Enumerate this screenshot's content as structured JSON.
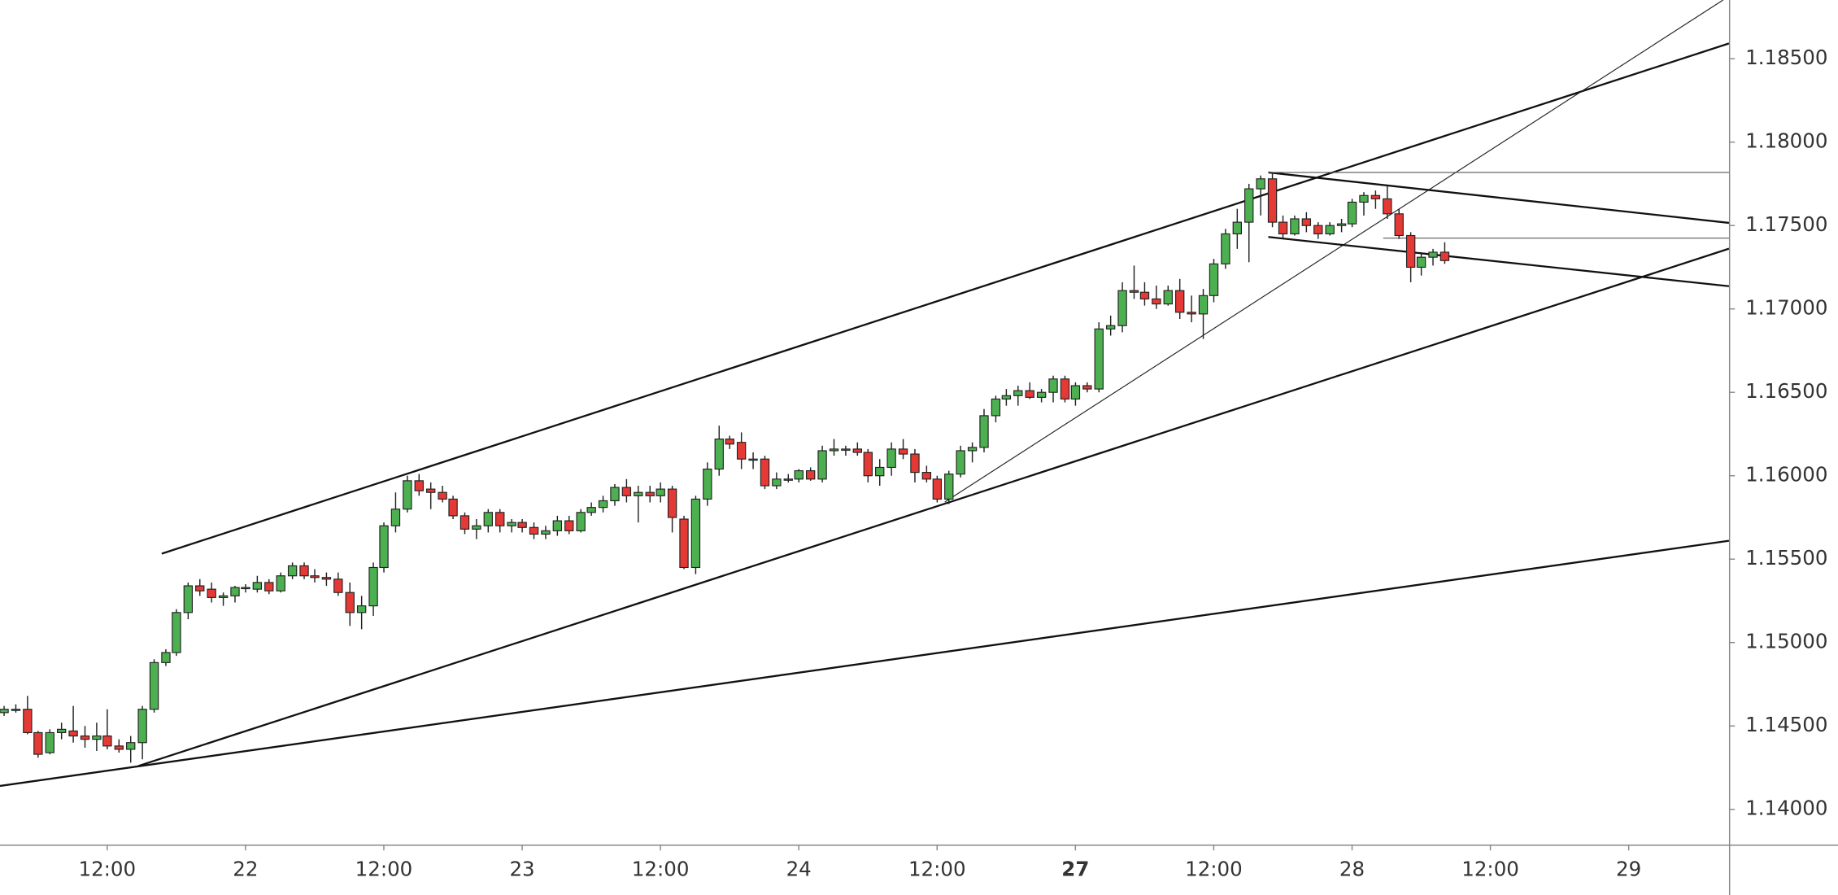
{
  "chart_data": {
    "type": "candlestick",
    "x": [
      0,
      1,
      2,
      3,
      4,
      5,
      6,
      7,
      8,
      9,
      10,
      11,
      12,
      13,
      14,
      15,
      16,
      17,
      18,
      19,
      20,
      21,
      22,
      23,
      24,
      25,
      26,
      27,
      28,
      29,
      30,
      31,
      32,
      33,
      34,
      35,
      36,
      37,
      38,
      39,
      40,
      41,
      42,
      43,
      44,
      45,
      46,
      47,
      48,
      49,
      50,
      51,
      52,
      53,
      54,
      55,
      56,
      57,
      58,
      59,
      60,
      61,
      62,
      63,
      64,
      65,
      66,
      67,
      68,
      69,
      70,
      71,
      72,
      73,
      74,
      75,
      76,
      77,
      78,
      79,
      80,
      81,
      82,
      83,
      84,
      85,
      86,
      87,
      88,
      89,
      90,
      91,
      92,
      93,
      94,
      95,
      96,
      97,
      98,
      99,
      100,
      101,
      102,
      103,
      104,
      105,
      106,
      107,
      108,
      109,
      110,
      111,
      112,
      113,
      114,
      115,
      116,
      117,
      118,
      119,
      120,
      121,
      122,
      123,
      124,
      125
    ],
    "open": [
      1.1458,
      1.146,
      1.146,
      1.1446,
      1.1434,
      1.1446,
      1.1447,
      1.1444,
      1.1442,
      1.1444,
      1.1438,
      1.1436,
      1.144,
      1.146,
      1.1488,
      1.1494,
      1.1518,
      1.1534,
      1.1532,
      1.1527,
      1.1528,
      1.1533,
      1.1532,
      1.1536,
      1.1531,
      1.154,
      1.1546,
      1.154,
      1.1539,
      1.1538,
      1.153,
      1.1518,
      1.1522,
      1.1545,
      1.157,
      1.158,
      1.1597,
      1.1592,
      1.159,
      1.1586,
      1.1576,
      1.1568,
      1.157,
      1.1578,
      1.157,
      1.1572,
      1.1569,
      1.1565,
      1.1567,
      1.1573,
      1.1567,
      1.1578,
      1.1581,
      1.1585,
      1.1593,
      1.1588,
      1.159,
      1.1588,
      1.1592,
      1.1574,
      1.1545,
      1.1586,
      1.1604,
      1.1622,
      1.162,
      1.161,
      1.161,
      1.1594,
      1.1598,
      1.1598,
      1.1603,
      1.1598,
      1.1615,
      1.1616,
      1.1616,
      1.1614,
      1.16,
      1.1605,
      1.1616,
      1.1613,
      1.1602,
      1.1598,
      1.1586,
      1.1601,
      1.1615,
      1.1617,
      1.1636,
      1.1646,
      1.1648,
      1.1651,
      1.1647,
      1.165,
      1.1658,
      1.1646,
      1.1654,
      1.1652,
      1.1688,
      1.169,
      1.1711,
      1.171,
      1.1706,
      1.1703,
      1.1711,
      1.1698,
      1.1697,
      1.1708,
      1.1727,
      1.1745,
      1.1752,
      1.1772,
      1.1778,
      1.1752,
      1.1745,
      1.1754,
      1.175,
      1.1745,
      1.175,
      1.1751,
      1.1764,
      1.1768,
      1.1766,
      1.1757,
      1.1744,
      1.1725,
      1.1731,
      1.1734
    ],
    "high": [
      1.1462,
      1.1463,
      1.1468,
      1.1447,
      1.1448,
      1.1452,
      1.1462,
      1.145,
      1.1452,
      1.146,
      1.1442,
      1.1444,
      1.1462,
      1.149,
      1.1496,
      1.152,
      1.1536,
      1.1538,
      1.1536,
      1.153,
      1.1534,
      1.1535,
      1.154,
      1.1538,
      1.1542,
      1.1548,
      1.1548,
      1.1544,
      1.1542,
      1.1542,
      1.1536,
      1.1528,
      1.1548,
      1.1572,
      1.159,
      1.16,
      1.1601,
      1.1596,
      1.1594,
      1.1588,
      1.1578,
      1.1574,
      1.158,
      1.158,
      1.1574,
      1.1574,
      1.1572,
      1.157,
      1.1576,
      1.1576,
      1.158,
      1.1584,
      1.1588,
      1.1595,
      1.1598,
      1.1594,
      1.1594,
      1.1596,
      1.1594,
      1.1576,
      1.1588,
      1.1608,
      1.163,
      1.1624,
      1.1626,
      1.1614,
      1.1612,
      1.1602,
      1.1601,
      1.1604,
      1.1605,
      1.1618,
      1.1622,
      1.1618,
      1.162,
      1.1616,
      1.161,
      1.162,
      1.1622,
      1.1616,
      1.1606,
      1.16,
      1.1603,
      1.1618,
      1.162,
      1.164,
      1.1648,
      1.1652,
      1.1654,
      1.1656,
      1.1652,
      1.166,
      1.166,
      1.1656,
      1.1656,
      1.1692,
      1.1696,
      1.1716,
      1.1726,
      1.1716,
      1.1714,
      1.1714,
      1.1718,
      1.1708,
      1.1712,
      1.173,
      1.1748,
      1.176,
      1.1775,
      1.178,
      1.1781,
      1.1756,
      1.1756,
      1.1758,
      1.1752,
      1.1752,
      1.1754,
      1.1766,
      1.177,
      1.1771,
      1.1774,
      1.176,
      1.1746,
      1.1734,
      1.1736,
      1.174
    ],
    "low": [
      1.1456,
      1.1458,
      1.1445,
      1.1431,
      1.1433,
      1.1442,
      1.144,
      1.1437,
      1.1435,
      1.1436,
      1.1434,
      1.1428,
      1.143,
      1.1458,
      1.1486,
      1.1492,
      1.1514,
      1.1528,
      1.1524,
      1.1522,
      1.1524,
      1.153,
      1.153,
      1.1529,
      1.153,
      1.1538,
      1.1538,
      1.1536,
      1.1534,
      1.1528,
      1.151,
      1.1508,
      1.1516,
      1.1542,
      1.1566,
      1.1578,
      1.1588,
      1.158,
      1.1584,
      1.1574,
      1.1565,
      1.1562,
      1.1566,
      1.1566,
      1.1566,
      1.1566,
      1.1562,
      1.1562,
      1.1564,
      1.1565,
      1.1566,
      1.1576,
      1.1578,
      1.1582,
      1.1584,
      1.1572,
      1.1584,
      1.1584,
      1.1566,
      1.1544,
      1.1541,
      1.1582,
      1.16,
      1.1616,
      1.1604,
      1.1604,
      1.1592,
      1.1592,
      1.1596,
      1.1596,
      1.1597,
      1.1596,
      1.1612,
      1.1612,
      1.1612,
      1.1596,
      1.1594,
      1.16,
      1.161,
      1.1596,
      1.1596,
      1.1584,
      1.1583,
      1.1599,
      1.1608,
      1.1614,
      1.1632,
      1.1642,
      1.1642,
      1.1646,
      1.1644,
      1.1644,
      1.1644,
      1.1642,
      1.165,
      1.165,
      1.1684,
      1.1686,
      1.1706,
      1.1702,
      1.17,
      1.1702,
      1.1694,
      1.1692,
      1.1682,
      1.1704,
      1.1724,
      1.1736,
      1.1728,
      1.1756,
      1.1749,
      1.1742,
      1.1744,
      1.1746,
      1.1742,
      1.1744,
      1.1746,
      1.1749,
      1.1756,
      1.176,
      1.1754,
      1.1742,
      1.1716,
      1.172,
      1.1726,
      1.1727
    ],
    "close": [
      1.146,
      1.146,
      1.1446,
      1.1433,
      1.1446,
      1.1448,
      1.1444,
      1.1442,
      1.1444,
      1.1438,
      1.1436,
      1.144,
      1.146,
      1.1488,
      1.1494,
      1.1518,
      1.1534,
      1.1531,
      1.1527,
      1.1528,
      1.1533,
      1.1533,
      1.1536,
      1.1531,
      1.154,
      1.1546,
      1.154,
      1.1539,
      1.1538,
      1.153,
      1.1518,
      1.1522,
      1.1545,
      1.157,
      1.158,
      1.1597,
      1.1591,
      1.159,
      1.1586,
      1.1576,
      1.1568,
      1.157,
      1.1578,
      1.157,
      1.1572,
      1.1569,
      1.1565,
      1.1567,
      1.1573,
      1.1567,
      1.1578,
      1.1581,
      1.1585,
      1.1593,
      1.1588,
      1.159,
      1.1588,
      1.1592,
      1.1575,
      1.1545,
      1.1586,
      1.1604,
      1.1622,
      1.1619,
      1.161,
      1.161,
      1.1594,
      1.1598,
      1.1598,
      1.1603,
      1.1598,
      1.1615,
      1.1616,
      1.1616,
      1.1614,
      1.16,
      1.1605,
      1.1616,
      1.1613,
      1.1602,
      1.1598,
      1.1586,
      1.1601,
      1.1615,
      1.1617,
      1.1636,
      1.1646,
      1.1648,
      1.1651,
      1.1647,
      1.165,
      1.1658,
      1.1646,
      1.1654,
      1.1652,
      1.1688,
      1.169,
      1.1711,
      1.171,
      1.1706,
      1.1703,
      1.1711,
      1.1698,
      1.1697,
      1.1708,
      1.1727,
      1.1745,
      1.1752,
      1.1772,
      1.1778,
      1.1752,
      1.1745,
      1.1754,
      1.175,
      1.1745,
      1.175,
      1.1751,
      1.1764,
      1.1768,
      1.1766,
      1.1757,
      1.1744,
      1.1725,
      1.1731,
      1.1734,
      1.1729
    ],
    "up_color": "#4caf50",
    "down_color": "#e53935",
    "wick_color": "#222222",
    "xlim": [
      -0.3,
      149.7
    ],
    "xticks": [
      {
        "value": 9,
        "label": "12:00"
      },
      {
        "value": 21,
        "label": "22"
      },
      {
        "value": 33,
        "label": "12:00"
      },
      {
        "value": 45,
        "label": "23"
      },
      {
        "value": 57,
        "label": "12:00"
      },
      {
        "value": 69,
        "label": "24"
      },
      {
        "value": 81,
        "label": "12:00"
      },
      {
        "value": 93,
        "label": "27",
        "bold": true
      },
      {
        "value": 105,
        "label": "12:00"
      },
      {
        "value": 117,
        "label": "28"
      },
      {
        "value": 129,
        "label": "12:00"
      },
      {
        "value": 141,
        "label": "29"
      }
    ],
    "ylim": [
      1.13789,
      1.18852
    ],
    "yticks": [
      {
        "value": 1.14,
        "label": "1.14000"
      },
      {
        "value": 1.145,
        "label": "1.14500"
      },
      {
        "value": 1.15,
        "label": "1.15000"
      },
      {
        "value": 1.155,
        "label": "1.15500"
      },
      {
        "value": 1.16,
        "label": "1.16000"
      },
      {
        "value": 1.165,
        "label": "1.16500"
      },
      {
        "value": 1.17,
        "label": "1.17000"
      },
      {
        "value": 1.175,
        "label": "1.17500"
      },
      {
        "value": 1.18,
        "label": "1.18000"
      },
      {
        "value": 1.185,
        "label": "1.18500"
      }
    ],
    "grid": false
  }
}
